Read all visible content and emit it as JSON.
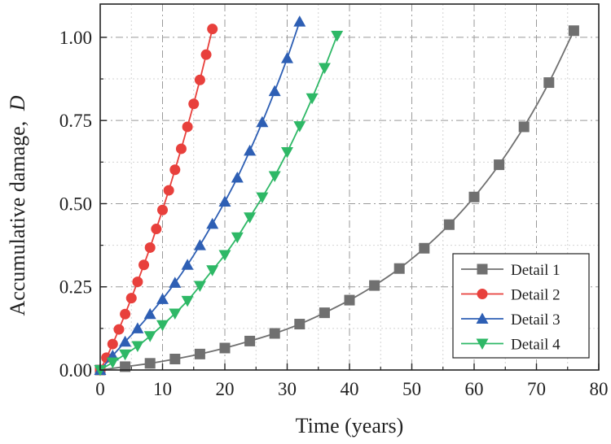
{
  "chart_data": {
    "type": "line",
    "title": "",
    "xlabel": "Time (years)",
    "ylabel_text": "Accumulative damage,",
    "ylabel_var": "D",
    "xlim": [
      0,
      80
    ],
    "ylim": [
      0,
      1.1
    ],
    "xticks": [
      "0",
      "10",
      "20",
      "30",
      "40",
      "50",
      "60",
      "70",
      "80"
    ],
    "xtick_values": [
      0,
      10,
      20,
      30,
      40,
      50,
      60,
      70,
      80
    ],
    "yticks": [
      "0.00",
      "0.25",
      "0.50",
      "0.75",
      "1.00"
    ],
    "ytick_values": [
      0,
      0.25,
      0.5,
      0.75,
      1.0
    ],
    "grid": true,
    "legend_position": "lower-right",
    "series": [
      {
        "name": "Detail 1",
        "marker": "square",
        "color": "#707070",
        "x": [
          0,
          4,
          8,
          12,
          16,
          20,
          24,
          28,
          32,
          36,
          40,
          44,
          48,
          52,
          56,
          60,
          64,
          68,
          72,
          76
        ],
        "y": [
          0.0,
          0.01,
          0.02,
          0.033,
          0.048,
          0.066,
          0.087,
          0.11,
          0.138,
          0.172,
          0.21,
          0.254,
          0.305,
          0.366,
          0.437,
          0.52,
          0.617,
          0.731,
          0.864,
          1.02
        ]
      },
      {
        "name": "Detail 2",
        "marker": "circle",
        "color": "#e8403c",
        "x": [
          0,
          1,
          2,
          3,
          4,
          5,
          6,
          7,
          8,
          9,
          10,
          11,
          12,
          13,
          14,
          15,
          16,
          17,
          18
        ],
        "y": [
          0.0,
          0.037,
          0.078,
          0.122,
          0.168,
          0.216,
          0.265,
          0.316,
          0.368,
          0.424,
          0.481,
          0.54,
          0.602,
          0.665,
          0.731,
          0.8,
          0.872,
          0.948,
          1.025
        ]
      },
      {
        "name": "Detail 3",
        "marker": "triangle-up",
        "color": "#2e5fb4",
        "x": [
          0,
          2,
          4,
          6,
          8,
          10,
          12,
          14,
          16,
          18,
          20,
          22,
          24,
          26,
          28,
          30,
          32
        ],
        "y": [
          0.0,
          0.043,
          0.085,
          0.125,
          0.168,
          0.213,
          0.262,
          0.316,
          0.375,
          0.439,
          0.506,
          0.578,
          0.659,
          0.745,
          0.838,
          0.937,
          1.047
        ]
      },
      {
        "name": "Detail 4",
        "marker": "triangle-down",
        "color": "#2eb866",
        "x": [
          0,
          2,
          4,
          6,
          8,
          10,
          12,
          14,
          16,
          18,
          20,
          22,
          24,
          26,
          28,
          30,
          32,
          34,
          36,
          38
        ],
        "y": [
          0.0,
          0.023,
          0.047,
          0.072,
          0.102,
          0.135,
          0.17,
          0.208,
          0.253,
          0.3,
          0.346,
          0.399,
          0.459,
          0.519,
          0.583,
          0.655,
          0.733,
          0.817,
          0.908,
          1.005
        ]
      }
    ]
  }
}
